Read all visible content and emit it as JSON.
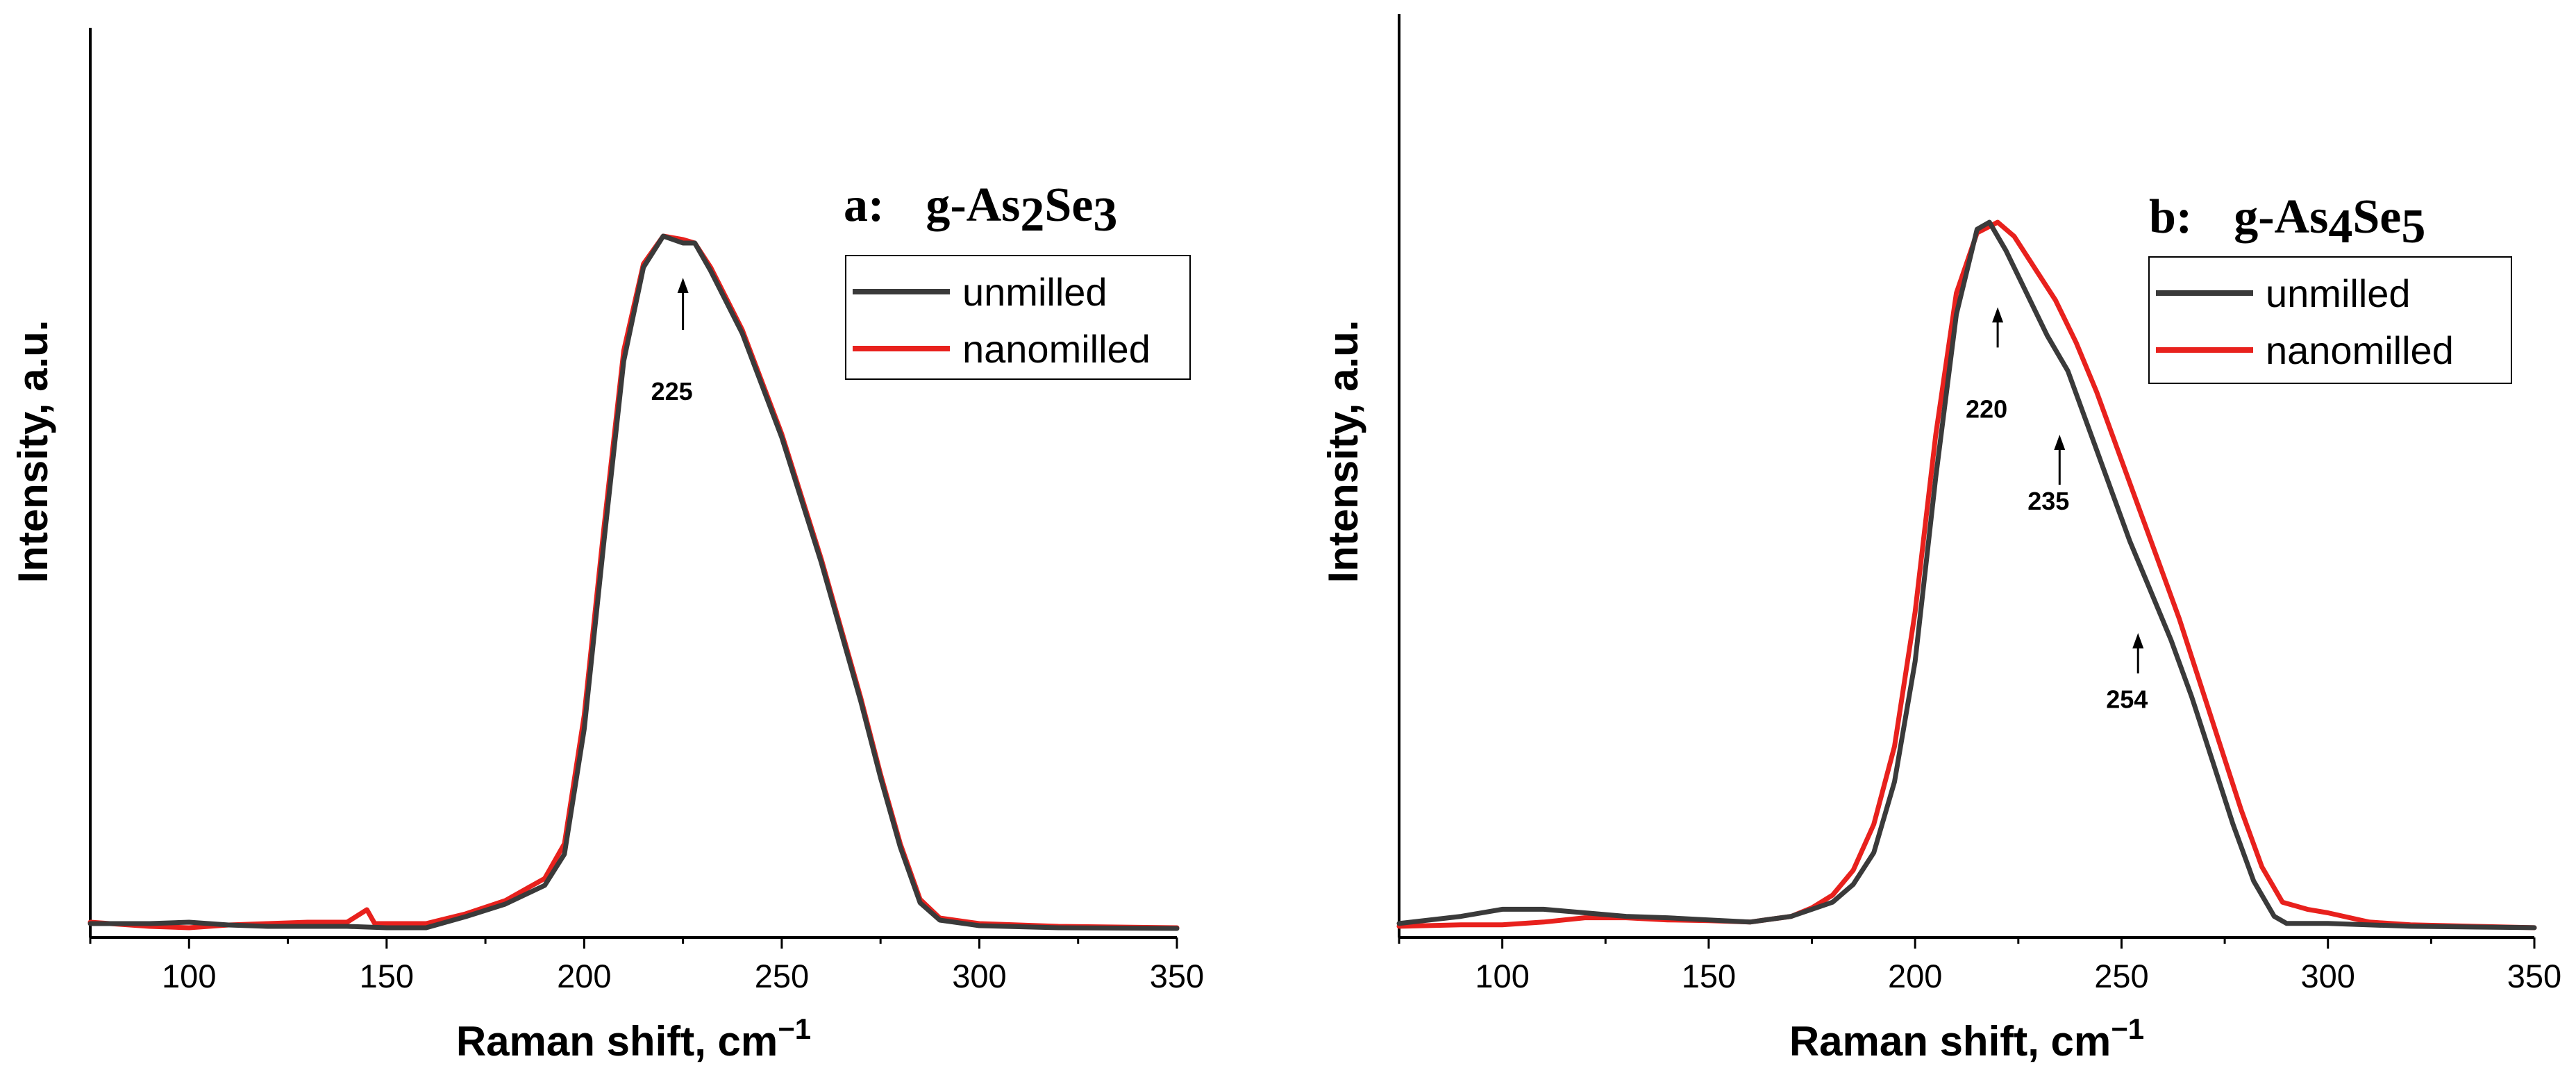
{
  "chart_data": [
    {
      "type": "line",
      "panel_label": "a:",
      "title": {
        "prefix": "g-As",
        "sub1": "2",
        "mid": "Se",
        "sub2": "3"
      },
      "xlabel": "Raman shift, cm−1",
      "ylabel": "Intensity, a.u.",
      "xlim": [
        75,
        350
      ],
      "ylim": [
        0,
        1.0
      ],
      "xticks": [
        100,
        150,
        200,
        250,
        300,
        350
      ],
      "xtick_labels": [
        "100",
        "150",
        "200",
        "250",
        "300",
        "350"
      ],
      "legend_position": "top-right",
      "series": [
        {
          "name": "unmilled",
          "color": "#3a3a3a",
          "x": [
            75,
            90,
            100,
            110,
            120,
            130,
            140,
            150,
            160,
            170,
            180,
            190,
            195,
            200,
            205,
            210,
            215,
            220,
            225,
            228,
            232,
            240,
            250,
            260,
            270,
            275,
            280,
            285,
            290,
            300,
            320,
            350
          ],
          "y": [
            0.01,
            0.01,
            0.012,
            0.008,
            0.006,
            0.006,
            0.006,
            0.004,
            0.004,
            0.02,
            0.038,
            0.065,
            0.11,
            0.29,
            0.56,
            0.82,
            0.955,
            1.0,
            0.99,
            0.99,
            0.95,
            0.86,
            0.71,
            0.53,
            0.33,
            0.22,
            0.12,
            0.04,
            0.015,
            0.007,
            0.004,
            0.003
          ]
        },
        {
          "name": "nanomilled",
          "color": "#e8211d",
          "x": [
            75,
            90,
            100,
            110,
            120,
            130,
            140,
            145,
            147,
            150,
            160,
            170,
            180,
            190,
            195,
            200,
            205,
            210,
            215,
            220,
            225,
            228,
            232,
            240,
            250,
            260,
            270,
            275,
            280,
            285,
            290,
            300,
            320,
            350
          ],
          "y": [
            0.012,
            0.006,
            0.004,
            0.008,
            0.01,
            0.012,
            0.012,
            0.03,
            0.01,
            0.01,
            0.01,
            0.024,
            0.043,
            0.075,
            0.125,
            0.31,
            0.58,
            0.835,
            0.96,
            1.0,
            0.995,
            0.99,
            0.955,
            0.865,
            0.715,
            0.535,
            0.335,
            0.225,
            0.125,
            0.045,
            0.018,
            0.01,
            0.006,
            0.004
          ]
        }
      ],
      "annotations": [
        {
          "text": "225",
          "x": 225
        }
      ]
    },
    {
      "type": "line",
      "panel_label": "b:",
      "title": {
        "prefix": "g-As",
        "sub1": "4",
        "mid": "Se",
        "sub2": "5"
      },
      "xlabel": "Raman shift, cm−1",
      "ylabel": "Intensity, a.u.",
      "xlim": [
        75,
        350
      ],
      "ylim": [
        0,
        1.0
      ],
      "xticks": [
        100,
        150,
        200,
        250,
        300,
        350
      ],
      "xtick_labels": [
        "100",
        "150",
        "200",
        "250",
        "300",
        "350"
      ],
      "legend_position": "top-right",
      "series": [
        {
          "name": "unmilled",
          "color": "#3a3a3a",
          "x": [
            75,
            90,
            100,
            110,
            120,
            130,
            140,
            150,
            160,
            170,
            175,
            180,
            185,
            190,
            195,
            200,
            205,
            210,
            215,
            218,
            222,
            227,
            232,
            237,
            242,
            247,
            252,
            257,
            262,
            267,
            272,
            277,
            282,
            287,
            290,
            300,
            320,
            350
          ],
          "y": [
            0.01,
            0.02,
            0.03,
            0.03,
            0.025,
            0.02,
            0.018,
            0.015,
            0.012,
            0.02,
            0.03,
            0.04,
            0.065,
            0.11,
            0.21,
            0.38,
            0.64,
            0.87,
            0.99,
            1.0,
            0.96,
            0.9,
            0.84,
            0.79,
            0.71,
            0.63,
            0.55,
            0.48,
            0.41,
            0.33,
            0.24,
            0.15,
            0.07,
            0.02,
            0.01,
            0.01,
            0.006,
            0.004
          ]
        },
        {
          "name": "nanomilled",
          "color": "#e8211d",
          "x": [
            75,
            90,
            100,
            110,
            120,
            130,
            140,
            150,
            160,
            170,
            175,
            180,
            185,
            190,
            195,
            200,
            205,
            210,
            215,
            220,
            224,
            229,
            234,
            239,
            244,
            249,
            254,
            259,
            264,
            269,
            274,
            279,
            284,
            289,
            295,
            300,
            310,
            320,
            350
          ],
          "y": [
            0.006,
            0.008,
            0.008,
            0.012,
            0.018,
            0.018,
            0.015,
            0.014,
            0.012,
            0.02,
            0.032,
            0.05,
            0.085,
            0.15,
            0.26,
            0.45,
            0.7,
            0.9,
            0.985,
            1.0,
            0.98,
            0.935,
            0.89,
            0.83,
            0.76,
            0.68,
            0.6,
            0.52,
            0.44,
            0.35,
            0.26,
            0.17,
            0.09,
            0.04,
            0.03,
            0.025,
            0.012,
            0.008,
            0.004
          ]
        }
      ],
      "annotations": [
        {
          "text": "220",
          "x": 220
        },
        {
          "text": "235",
          "x": 235
        },
        {
          "text": "254",
          "x": 254
        }
      ]
    }
  ]
}
